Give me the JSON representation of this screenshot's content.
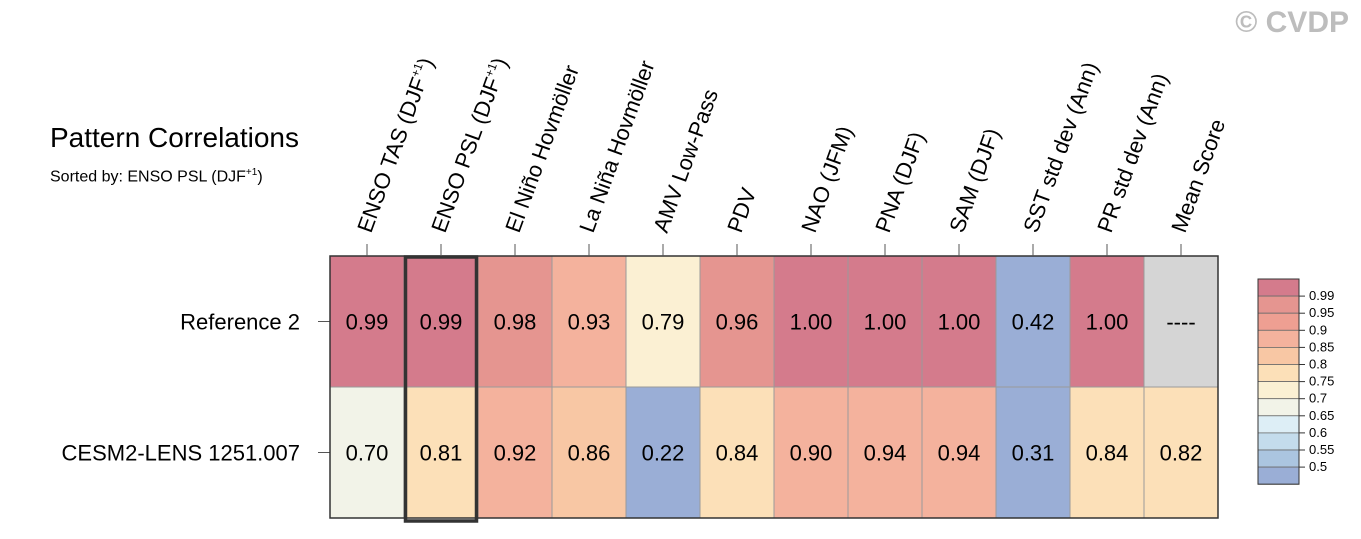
{
  "header": {
    "title": "Pattern Correlations",
    "subtitle": "Sorted by: ENSO PSL (DJF+1)",
    "watermark": "© CVDP"
  },
  "chart_data": {
    "type": "heatmap",
    "title": "Pattern Correlations",
    "subtitle": "Sorted by: ENSO PSL (DJF+1)",
    "columns": [
      {
        "label": "ENSO TAS (DJF",
        "sup": "+1",
        "tail": ")"
      },
      {
        "label": "ENSO PSL (DJF",
        "sup": "+1",
        "tail": ")"
      },
      {
        "label": "El Niño Hovmöller",
        "sup": "",
        "tail": ""
      },
      {
        "label": "La Niña Hovmöller",
        "sup": "",
        "tail": ""
      },
      {
        "label": "AMV Low-Pass",
        "sup": "",
        "tail": ""
      },
      {
        "label": "PDV",
        "sup": "",
        "tail": ""
      },
      {
        "label": "NAO (JFM)",
        "sup": "",
        "tail": ""
      },
      {
        "label": "PNA (DJF)",
        "sup": "",
        "tail": ""
      },
      {
        "label": "SAM (DJF)",
        "sup": "",
        "tail": ""
      },
      {
        "label": "SST std dev (Ann)",
        "sup": "",
        "tail": ""
      },
      {
        "label": "PR std dev (Ann)",
        "sup": "",
        "tail": ""
      },
      {
        "label": "Mean Score",
        "sup": "",
        "tail": ""
      }
    ],
    "rows": [
      {
        "name": "Reference 2",
        "values": [
          0.99,
          0.99,
          0.98,
          0.93,
          0.79,
          0.96,
          1.0,
          1.0,
          1.0,
          0.42,
          1.0,
          null
        ],
        "labels": [
          "0.99",
          "0.99",
          "0.98",
          "0.93",
          "0.79",
          "0.96",
          "1.00",
          "1.00",
          "1.00",
          "0.42",
          "1.00",
          "----"
        ]
      },
      {
        "name": "CESM2-LENS 1251.007",
        "values": [
          0.7,
          0.81,
          0.92,
          0.86,
          0.22,
          0.84,
          0.9,
          0.94,
          0.94,
          0.31,
          0.84,
          0.82
        ],
        "labels": [
          "0.70",
          "0.81",
          "0.92",
          "0.86",
          "0.22",
          "0.84",
          "0.90",
          "0.94",
          "0.94",
          "0.31",
          "0.84",
          "0.82"
        ]
      }
    ],
    "highlighted_column": 1,
    "missing_color": "#d5d5d5",
    "colorbar": {
      "levels": [
        "0.99",
        "0.95",
        "0.9",
        "0.85",
        "0.8",
        "0.75",
        "0.7",
        "0.65",
        "0.6",
        "0.55",
        "0.5"
      ],
      "colors_top_to_bottom": [
        "#d47b8c",
        "#e59590",
        "#ee9f92",
        "#f4b29d",
        "#f8c7a4",
        "#fce0b8",
        "#fbf0d3",
        "#f2f3e8",
        "#ddeef6",
        "#c4dcec",
        "#abc5e0",
        "#9aaed6"
      ]
    },
    "bins": [
      {
        "min": 0.99,
        "color": "#d47b8c"
      },
      {
        "min": 0.95,
        "color": "#e59590"
      },
      {
        "min": 0.9,
        "color": "#f4b29d"
      },
      {
        "min": 0.85,
        "color": "#f8c7a4"
      },
      {
        "min": 0.8,
        "color": "#fce0b8"
      },
      {
        "min": 0.75,
        "color": "#fbf0d3"
      },
      {
        "min": 0.7,
        "color": "#f2f3e8"
      },
      {
        "min": 0.65,
        "color": "#ddeef6"
      },
      {
        "min": 0.6,
        "color": "#c4dcec"
      },
      {
        "min": 0.55,
        "color": "#abc5e0"
      },
      {
        "min": -1.0,
        "color": "#9aaed6"
      }
    ]
  }
}
